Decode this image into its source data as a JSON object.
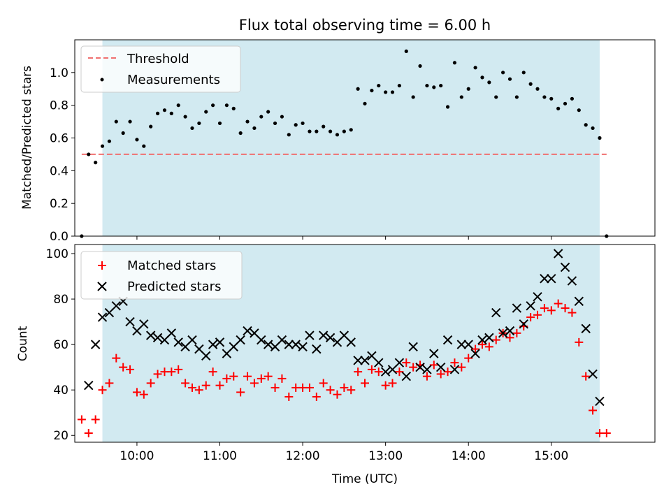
{
  "chart_data": [
    {
      "type": "scatter",
      "title": "Flux total observing time = 6.00 h",
      "xlabel": "",
      "ylabel": "Matched/Predicted stars",
      "xlim": [
        "09:15",
        "16:15"
      ],
      "ylim": [
        0,
        1.2
      ],
      "yticks": [
        "0.0",
        "0.2",
        "0.4",
        "0.6",
        "0.8",
        "1.0"
      ],
      "shaded_span": [
        "09:35",
        "15:35"
      ],
      "shade_color": "#add8e6",
      "grid": false,
      "legend_position": "upper-left",
      "series": [
        {
          "name": "Threshold",
          "style": "dashed-line",
          "color": "#f07070",
          "x": [
            "09:20",
            "15:40"
          ],
          "y": [
            0.5,
            0.5
          ]
        },
        {
          "name": "Measurements",
          "style": "dot",
          "color": "#000000",
          "x": [
            "09:20",
            "09:25",
            "09:30",
            "09:35",
            "09:40",
            "09:45",
            "09:50",
            "09:55",
            "10:00",
            "10:05",
            "10:10",
            "10:15",
            "10:20",
            "10:25",
            "10:30",
            "10:35",
            "10:40",
            "10:45",
            "10:50",
            "10:55",
            "11:00",
            "11:05",
            "11:10",
            "11:15",
            "11:20",
            "11:25",
            "11:30",
            "11:35",
            "11:40",
            "11:45",
            "11:50",
            "11:55",
            "12:00",
            "12:05",
            "12:10",
            "12:15",
            "12:20",
            "12:25",
            "12:30",
            "12:35",
            "12:40",
            "12:45",
            "12:50",
            "12:55",
            "13:00",
            "13:05",
            "13:10",
            "13:15",
            "13:20",
            "13:25",
            "13:30",
            "13:35",
            "13:40",
            "13:45",
            "13:50",
            "13:55",
            "14:00",
            "14:05",
            "14:10",
            "14:15",
            "14:20",
            "14:25",
            "14:30",
            "14:35",
            "14:40",
            "14:45",
            "14:50",
            "14:55",
            "15:00",
            "15:05",
            "15:10",
            "15:15",
            "15:20",
            "15:25",
            "15:30",
            "15:35",
            "15:40"
          ],
          "y": [
            0.0,
            0.5,
            0.45,
            0.55,
            0.58,
            0.7,
            0.63,
            0.7,
            0.59,
            0.55,
            0.67,
            0.75,
            0.77,
            0.75,
            0.8,
            0.73,
            0.66,
            0.69,
            0.76,
            0.8,
            0.69,
            0.8,
            0.78,
            0.63,
            0.7,
            0.66,
            0.73,
            0.76,
            0.69,
            0.73,
            0.62,
            0.68,
            0.69,
            0.64,
            0.64,
            0.67,
            0.64,
            0.62,
            0.64,
            0.65,
            0.9,
            0.81,
            0.89,
            0.92,
            0.88,
            0.88,
            0.92,
            1.13,
            0.85,
            1.04,
            0.92,
            0.91,
            0.92,
            0.79,
            1.06,
            0.85,
            0.9,
            1.03,
            0.97,
            0.94,
            0.85,
            1.0,
            0.96,
            0.85,
            1.0,
            0.93,
            0.9,
            0.85,
            0.84,
            0.78,
            0.81,
            0.84,
            0.77,
            0.68,
            0.66,
            0.6,
            0.0
          ]
        }
      ]
    },
    {
      "type": "scatter",
      "title": "",
      "xlabel": "Time (UTC)",
      "ylabel": "Count",
      "xlim": [
        "09:15",
        "16:15"
      ],
      "ylim": [
        17,
        104
      ],
      "yticks": [
        "20",
        "40",
        "60",
        "80",
        "100"
      ],
      "xticks": [
        "10:00",
        "11:00",
        "12:00",
        "13:00",
        "14:00",
        "15:00"
      ],
      "shaded_span": [
        "09:35",
        "15:35"
      ],
      "shade_color": "#add8e6",
      "grid": false,
      "legend_position": "upper-left",
      "series": [
        {
          "name": "Matched stars",
          "marker": "plus",
          "color": "#ff0000",
          "x": [
            "09:20",
            "09:25",
            "09:30",
            "09:35",
            "09:40",
            "09:45",
            "09:50",
            "09:55",
            "10:00",
            "10:05",
            "10:10",
            "10:15",
            "10:20",
            "10:25",
            "10:30",
            "10:35",
            "10:40",
            "10:45",
            "10:50",
            "10:55",
            "11:00",
            "11:05",
            "11:10",
            "11:15",
            "11:20",
            "11:25",
            "11:30",
            "11:35",
            "11:40",
            "11:45",
            "11:50",
            "11:55",
            "12:00",
            "12:05",
            "12:10",
            "12:15",
            "12:20",
            "12:25",
            "12:30",
            "12:35",
            "12:40",
            "12:45",
            "12:50",
            "12:55",
            "13:00",
            "13:05",
            "13:10",
            "13:15",
            "13:20",
            "13:25",
            "13:30",
            "13:35",
            "13:40",
            "13:45",
            "13:50",
            "13:55",
            "14:00",
            "14:05",
            "14:10",
            "14:15",
            "14:20",
            "14:25",
            "14:30",
            "14:35",
            "14:40",
            "14:45",
            "14:50",
            "14:55",
            "15:00",
            "15:05",
            "15:10",
            "15:15",
            "15:20",
            "15:25",
            "15:30",
            "15:35",
            "15:40"
          ],
          "y": [
            27,
            21,
            27,
            40,
            43,
            54,
            50,
            49,
            39,
            38,
            43,
            47,
            48,
            48,
            49,
            43,
            41,
            40,
            42,
            48,
            42,
            45,
            46,
            39,
            46,
            43,
            45,
            46,
            41,
            45,
            37,
            41,
            41,
            41,
            37,
            43,
            40,
            38,
            41,
            40,
            48,
            43,
            49,
            48,
            42,
            43,
            48,
            52,
            50,
            51,
            46,
            51,
            47,
            48,
            52,
            50,
            54,
            58,
            60,
            59,
            62,
            65,
            63,
            65,
            68,
            72,
            73,
            76,
            75,
            78,
            76,
            74,
            61,
            46,
            31,
            21,
            21
          ]
        },
        {
          "name": "Predicted stars",
          "marker": "x",
          "color": "#000000",
          "x": [
            "09:25",
            "09:30",
            "09:35",
            "09:40",
            "09:45",
            "09:50",
            "09:55",
            "10:00",
            "10:05",
            "10:10",
            "10:15",
            "10:20",
            "10:25",
            "10:30",
            "10:35",
            "10:40",
            "10:45",
            "10:50",
            "10:55",
            "11:00",
            "11:05",
            "11:10",
            "11:15",
            "11:20",
            "11:25",
            "11:30",
            "11:35",
            "11:40",
            "11:45",
            "11:50",
            "11:55",
            "12:00",
            "12:05",
            "12:10",
            "12:15",
            "12:20",
            "12:25",
            "12:30",
            "12:35",
            "12:40",
            "12:45",
            "12:50",
            "12:55",
            "13:00",
            "13:05",
            "13:10",
            "13:15",
            "13:20",
            "13:25",
            "13:30",
            "13:35",
            "13:40",
            "13:45",
            "13:50",
            "13:55",
            "14:00",
            "14:05",
            "14:10",
            "14:15",
            "14:20",
            "14:25",
            "14:30",
            "14:35",
            "14:40",
            "14:45",
            "14:50",
            "14:55",
            "15:00",
            "15:05",
            "15:10",
            "15:15",
            "15:20",
            "15:25",
            "15:30",
            "15:35"
          ],
          "y": [
            42,
            60,
            72,
            74,
            77,
            79,
            70,
            66,
            69,
            64,
            63,
            62,
            65,
            61,
            59,
            62,
            58,
            55,
            60,
            61,
            56,
            59,
            62,
            66,
            65,
            62,
            60,
            59,
            62,
            60,
            60,
            59,
            64,
            58,
            64,
            63,
            61,
            64,
            61,
            53,
            53,
            55,
            52,
            48,
            49,
            52,
            46,
            59,
            50,
            49,
            56,
            50,
            62,
            49,
            60,
            60,
            56,
            62,
            63,
            74,
            65,
            66,
            76,
            69,
            77,
            81,
            89,
            89,
            100,
            94,
            88,
            79,
            67,
            47,
            35
          ]
        }
      ]
    }
  ]
}
